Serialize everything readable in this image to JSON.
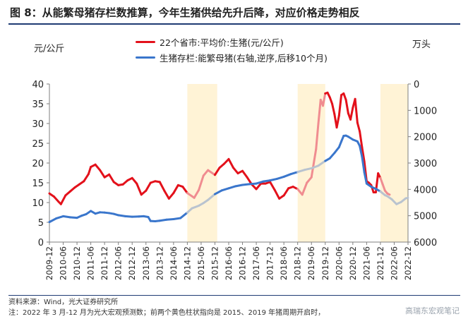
{
  "title": "图 8：从能繁母猪存栏数推算，今年生猪供给先升后降，对应价格走势相反",
  "left_unit": "元/公斤",
  "right_unit": "万头",
  "source_note": "资料来源：Wind，光大证券研究所",
  "footnote": "注：2022 年 3 月-12 月为光大宏观预测数；前两个黄色柱状指向是 2015、2019 年猪周期开启时，",
  "watermark": "高瑞东宏观笔记",
  "colors": {
    "price": "#e3111b",
    "stock": "#3a76cc",
    "highlight": "#fff3d6",
    "title_rule": "#1f3b73"
  },
  "chart_data": {
    "type": "line",
    "title": "",
    "x_ticks": [
      "2009-12",
      "2010-06",
      "2010-12",
      "2011-06",
      "2011-12",
      "2012-06",
      "2012-12",
      "2013-06",
      "2013-12",
      "2014-06",
      "2014-12",
      "2015-06",
      "2015-12",
      "2016-06",
      "2016-12",
      "2017-06",
      "2017-12",
      "2018-06",
      "2018-12",
      "2019-06",
      "2019-12",
      "2020-06",
      "2020-12",
      "2021-06",
      "2021-12",
      "2022-06",
      "2022-12"
    ],
    "x_range": [
      "2009-12",
      "2022-12"
    ],
    "y_left": {
      "label": "元/公斤",
      "lim": [
        0,
        40
      ],
      "ticks": [
        0,
        5,
        10,
        15,
        20,
        25,
        30,
        35,
        40
      ]
    },
    "y_right": {
      "label": "万头",
      "lim": [
        6000,
        0
      ],
      "inverted": true,
      "ticks": [
        0,
        1000,
        2000,
        3000,
        4000,
        5000,
        6000
      ]
    },
    "highlight_periods": [
      [
        "2014-12",
        "2016-01"
      ],
      [
        "2018-12",
        "2019-12"
      ],
      [
        "2021-12",
        "2022-12"
      ]
    ],
    "series": [
      {
        "name": "22个省市:平均价:生猪(元/公斤)",
        "axis": "left",
        "color": "#e3111b",
        "points": [
          [
            "2009-12",
            12.3
          ],
          [
            "2010-02",
            11.5
          ],
          [
            "2010-04",
            10.2
          ],
          [
            "2010-05",
            9.6
          ],
          [
            "2010-07",
            11.8
          ],
          [
            "2010-09",
            12.8
          ],
          [
            "2010-11",
            13.8
          ],
          [
            "2011-01",
            14.6
          ],
          [
            "2011-03",
            15.4
          ],
          [
            "2011-05",
            17.2
          ],
          [
            "2011-06",
            19.0
          ],
          [
            "2011-08",
            19.6
          ],
          [
            "2011-10",
            18.2
          ],
          [
            "2011-12",
            16.4
          ],
          [
            "2012-02",
            17.1
          ],
          [
            "2012-04",
            15.2
          ],
          [
            "2012-06",
            14.4
          ],
          [
            "2012-08",
            14.6
          ],
          [
            "2012-10",
            15.6
          ],
          [
            "2012-12",
            16.2
          ],
          [
            "2013-02",
            14.8
          ],
          [
            "2013-04",
            12.0
          ],
          [
            "2013-06",
            13.0
          ],
          [
            "2013-08",
            15.0
          ],
          [
            "2013-10",
            15.4
          ],
          [
            "2013-12",
            15.2
          ],
          [
            "2014-02",
            13.0
          ],
          [
            "2014-04",
            11.0
          ],
          [
            "2014-06",
            12.4
          ],
          [
            "2014-08",
            14.4
          ],
          [
            "2014-10",
            14.0
          ],
          [
            "2014-12",
            12.4
          ],
          [
            "2015-03",
            11.2
          ],
          [
            "2015-05",
            13.2
          ],
          [
            "2015-07",
            16.8
          ],
          [
            "2015-09",
            18.2
          ],
          [
            "2015-12",
            17.0
          ],
          [
            "2016-02",
            18.8
          ],
          [
            "2016-04",
            19.8
          ],
          [
            "2016-06",
            21.0
          ],
          [
            "2016-08",
            18.8
          ],
          [
            "2016-10",
            17.4
          ],
          [
            "2016-12",
            18.0
          ],
          [
            "2017-02",
            16.4
          ],
          [
            "2017-04",
            14.6
          ],
          [
            "2017-06",
            13.4
          ],
          [
            "2017-08",
            14.8
          ],
          [
            "2017-10",
            14.8
          ],
          [
            "2017-12",
            15.2
          ],
          [
            "2018-02",
            13.2
          ],
          [
            "2018-04",
            11.0
          ],
          [
            "2018-06",
            11.8
          ],
          [
            "2018-08",
            13.6
          ],
          [
            "2018-10",
            14.0
          ],
          [
            "2018-12",
            13.4
          ],
          [
            "2019-02",
            12.0
          ],
          [
            "2019-04",
            15.0
          ],
          [
            "2019-06",
            16.4
          ],
          [
            "2019-08",
            23.5
          ],
          [
            "2019-09",
            30.0
          ],
          [
            "2019-10",
            36.0
          ],
          [
            "2019-11",
            34.5
          ],
          [
            "2019-12",
            37.6
          ],
          [
            "2020-01",
            37.8
          ],
          [
            "2020-02",
            36.6
          ],
          [
            "2020-03",
            35.0
          ],
          [
            "2020-04",
            32.4
          ],
          [
            "2020-05",
            29.0
          ],
          [
            "2020-06",
            32.0
          ],
          [
            "2020-07",
            37.2
          ],
          [
            "2020-08",
            37.6
          ],
          [
            "2020-09",
            36.0
          ],
          [
            "2020-10",
            32.6
          ],
          [
            "2020-11",
            31.0
          ],
          [
            "2020-12",
            34.0
          ],
          [
            "2021-01",
            36.2
          ],
          [
            "2021-02",
            30.2
          ],
          [
            "2021-03",
            28.0
          ],
          [
            "2021-04",
            24.0
          ],
          [
            "2021-05",
            20.4
          ],
          [
            "2021-06",
            15.4
          ],
          [
            "2021-07",
            15.0
          ],
          [
            "2021-08",
            14.4
          ],
          [
            "2021-09",
            12.6
          ],
          [
            "2021-10",
            12.6
          ],
          [
            "2021-11",
            17.4
          ],
          [
            "2021-12",
            16.2
          ],
          [
            "2022-01",
            14.6
          ],
          [
            "2022-02",
            13.0
          ],
          [
            "2022-03",
            12.3
          ]
        ],
        "forecast_points": [
          [
            "2022-03",
            12.3
          ],
          [
            "2022-04",
            12.0
          ]
        ]
      },
      {
        "name": "生猪存栏:能繁母猪(右轴,逆序,后移10个月)",
        "axis": "right",
        "color": "#3a76cc",
        "points": [
          [
            "2009-12",
            5240
          ],
          [
            "2010-03",
            5100
          ],
          [
            "2010-06",
            5020
          ],
          [
            "2010-09",
            5060
          ],
          [
            "2010-12",
            5080
          ],
          [
            "2011-02",
            5000
          ],
          [
            "2011-04",
            4940
          ],
          [
            "2011-06",
            4820
          ],
          [
            "2011-08",
            4920
          ],
          [
            "2011-10",
            4870
          ],
          [
            "2011-12",
            4880
          ],
          [
            "2012-02",
            4900
          ],
          [
            "2012-04",
            4930
          ],
          [
            "2012-06",
            4980
          ],
          [
            "2012-09",
            5020
          ],
          [
            "2012-12",
            5040
          ],
          [
            "2013-03",
            5030
          ],
          [
            "2013-05",
            5020
          ],
          [
            "2013-07",
            5050
          ],
          [
            "2013-08",
            5200
          ],
          [
            "2013-10",
            5210
          ],
          [
            "2013-12",
            5190
          ],
          [
            "2014-03",
            5150
          ],
          [
            "2014-06",
            5130
          ],
          [
            "2014-09",
            5090
          ],
          [
            "2014-12",
            4880
          ],
          [
            "2015-02",
            4720
          ],
          [
            "2015-05",
            4620
          ],
          [
            "2015-07",
            4520
          ],
          [
            "2015-09",
            4400
          ],
          [
            "2015-12",
            4180
          ],
          [
            "2016-03",
            4040
          ],
          [
            "2016-06",
            3960
          ],
          [
            "2016-09",
            3880
          ],
          [
            "2016-12",
            3830
          ],
          [
            "2017-03",
            3800
          ],
          [
            "2017-06",
            3780
          ],
          [
            "2017-09",
            3700
          ],
          [
            "2017-12",
            3660
          ],
          [
            "2018-03",
            3600
          ],
          [
            "2018-06",
            3520
          ],
          [
            "2018-09",
            3420
          ],
          [
            "2018-12",
            3340
          ],
          [
            "2019-03",
            3260
          ],
          [
            "2019-06",
            3200
          ],
          [
            "2019-09",
            3100
          ],
          [
            "2019-12",
            2920
          ],
          [
            "2020-02",
            2820
          ],
          [
            "2020-04",
            2620
          ],
          [
            "2020-06",
            2400
          ],
          [
            "2020-07",
            2180
          ],
          [
            "2020-08",
            1970
          ],
          [
            "2020-09",
            1960
          ],
          [
            "2020-10",
            2000
          ],
          [
            "2020-12",
            2110
          ],
          [
            "2021-02",
            2180
          ],
          [
            "2021-03",
            2350
          ],
          [
            "2021-04",
            2760
          ],
          [
            "2021-05",
            3350
          ],
          [
            "2021-06",
            3780
          ],
          [
            "2021-08",
            3900
          ],
          [
            "2021-10",
            3980
          ],
          [
            "2021-12",
            4080
          ],
          [
            "2022-02",
            4220
          ],
          [
            "2022-03",
            4260
          ]
        ],
        "forecast_points": [
          [
            "2022-03",
            4260
          ],
          [
            "2022-05",
            4380
          ],
          [
            "2022-07",
            4560
          ],
          [
            "2022-09",
            4480
          ],
          [
            "2022-11",
            4340
          ],
          [
            "2022-12",
            4320
          ]
        ]
      }
    ]
  }
}
